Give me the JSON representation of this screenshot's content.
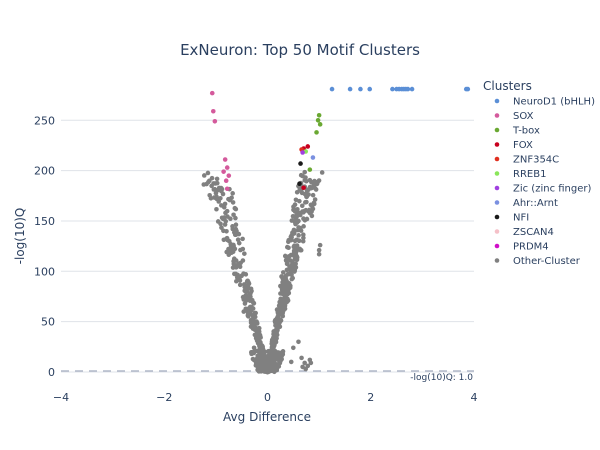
{
  "chart_data": {
    "type": "scatter",
    "title": "ExNeuron: Top 50 Motif Clusters",
    "xlabel": "Avg Difference",
    "ylabel": "-log(10)Q",
    "xlim": [
      -4,
      4
    ],
    "ylim": [
      -5,
      295
    ],
    "xticks": [
      -4,
      -2,
      0,
      2,
      4
    ],
    "yticks": [
      0,
      50,
      100,
      150,
      200,
      250
    ],
    "grid": "horizontal",
    "threshold": {
      "y": 1.0,
      "label": "-log(10)Q: 1.0",
      "style": "dashed"
    },
    "legend": {
      "title": "Clusters",
      "position": "right"
    },
    "series": [
      {
        "name": "NeuroD1 (bHLH)",
        "color": "#5b8fd6",
        "points": [
          [
            1.25,
            281
          ],
          [
            1.6,
            281
          ],
          [
            1.8,
            281
          ],
          [
            1.98,
            281
          ],
          [
            2.42,
            281
          ],
          [
            2.5,
            281
          ],
          [
            2.55,
            281
          ],
          [
            2.6,
            281
          ],
          [
            2.64,
            281
          ],
          [
            2.68,
            281
          ],
          [
            2.72,
            281
          ],
          [
            2.8,
            281
          ],
          [
            3.85,
            281
          ],
          [
            3.88,
            281
          ]
        ]
      },
      {
        "name": "SOX",
        "color": "#d45a9c",
        "points": [
          [
            -1.07,
            277
          ],
          [
            -1.05,
            259
          ],
          [
            -1.02,
            249
          ],
          [
            -0.82,
            211
          ],
          [
            -0.78,
            203
          ],
          [
            -0.85,
            199
          ],
          [
            -0.75,
            195
          ],
          [
            -0.8,
            190
          ],
          [
            -0.78,
            182
          ]
        ]
      },
      {
        "name": "T-box",
        "color": "#6aa832",
        "points": [
          [
            1.0,
            255
          ],
          [
            0.98,
            250
          ],
          [
            1.02,
            246
          ],
          [
            0.95,
            238
          ],
          [
            0.82,
            201
          ]
        ]
      },
      {
        "name": "FOX",
        "color": "#c8001e",
        "points": [
          [
            0.78,
            224
          ],
          [
            0.7,
            222
          ],
          [
            0.7,
            183
          ]
        ]
      },
      {
        "name": "ZNF354C",
        "color": "#e03020",
        "points": [
          [
            0.66,
            221
          ]
        ]
      },
      {
        "name": "RREB1",
        "color": "#8ae65a",
        "points": [
          [
            0.74,
            219
          ]
        ]
      },
      {
        "name": "Zic (zinc finger)",
        "color": "#a040e0",
        "points": [
          [
            0.68,
            218
          ]
        ]
      },
      {
        "name": "Ahr::Arnt",
        "color": "#7a90e0",
        "points": [
          [
            0.88,
            213
          ]
        ]
      },
      {
        "name": "NFI",
        "color": "#1a1a1a",
        "points": [
          [
            0.64,
            207
          ],
          [
            0.62,
            187
          ]
        ]
      },
      {
        "name": "ZSCAN4",
        "color": "#f5c0c8",
        "points": []
      },
      {
        "name": "PRDM4",
        "color": "#d010c8",
        "points": []
      },
      {
        "name": "Other-Cluster",
        "color": "#808080",
        "points": []
      }
    ]
  }
}
